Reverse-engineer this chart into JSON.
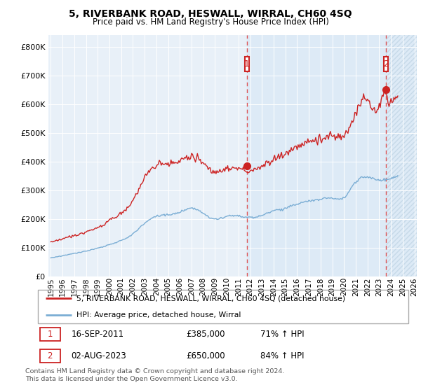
{
  "title": "5, RIVERBANK ROAD, HESWALL, WIRRAL, CH60 4SQ",
  "subtitle": "Price paid vs. HM Land Registry's House Price Index (HPI)",
  "ylabel_ticks": [
    0,
    100000,
    200000,
    300000,
    400000,
    500000,
    600000,
    700000,
    800000
  ],
  "ylim": [
    0,
    840000
  ],
  "xlim_start": 1995.0,
  "xlim_end": 2026.2,
  "sale1_x": 2011.71,
  "sale1_y": 385000,
  "sale1_label": "1",
  "sale2_x": 2023.58,
  "sale2_y": 650000,
  "sale2_label": "2",
  "legend_line1": "5, RIVERBANK ROAD, HESWALL, WIRRAL, CH60 4SQ (detached house)",
  "legend_line2": "HPI: Average price, detached house, Wirral",
  "table_row1": [
    "1",
    "16-SEP-2011",
    "£385,000",
    "71% ↑ HPI"
  ],
  "table_row2": [
    "2",
    "02-AUG-2023",
    "£650,000",
    "84% ↑ HPI"
  ],
  "footnote": "Contains HM Land Registry data © Crown copyright and database right 2024.\nThis data is licensed under the Open Government Licence v3.0.",
  "red_color": "#cc2222",
  "blue_color": "#7aadd4",
  "shade_color": "#dce8f5",
  "vline_color": "#dd4444",
  "marker_box_color": "#cc2222",
  "xtick_years": [
    1995,
    1996,
    1997,
    1998,
    1999,
    2000,
    2001,
    2002,
    2003,
    2004,
    2005,
    2006,
    2007,
    2008,
    2009,
    2010,
    2011,
    2012,
    2013,
    2014,
    2015,
    2016,
    2017,
    2018,
    2019,
    2020,
    2021,
    2022,
    2023,
    2024,
    2025,
    2026
  ]
}
